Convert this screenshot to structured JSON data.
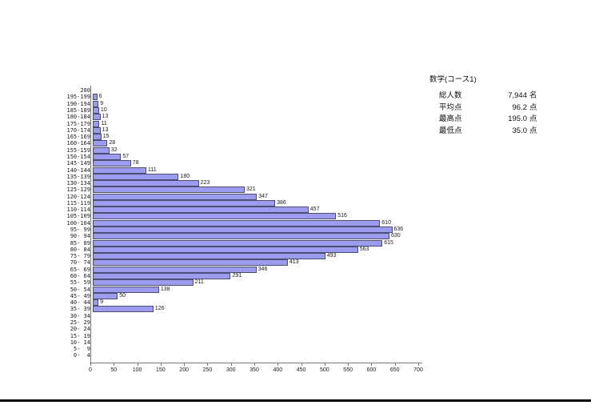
{
  "chart_data": {
    "type": "bar",
    "orientation": "horizontal",
    "title": "",
    "xlabel": "",
    "ylabel": "",
    "xlim": [
      0,
      700
    ],
    "x_ticks": [
      0,
      50,
      100,
      150,
      200,
      250,
      300,
      350,
      400,
      450,
      500,
      550,
      600,
      650,
      700
    ],
    "grid": "off",
    "bar_color": "#9c9cef",
    "bar_border_color": "#4d4d73",
    "categories": [
      "200",
      "195-199",
      "190-194",
      "185-189",
      "180-184",
      "175-179",
      "170-174",
      "165-169",
      "160-164",
      "155-159",
      "150-154",
      "145-149",
      "140-144",
      "135-139",
      "130-134",
      "125-129",
      "120-124",
      "115-119",
      "110-114",
      "105-109",
      "100-104",
      "95- 99",
      "90- 94",
      "85- 89",
      "80- 84",
      "75- 79",
      "70- 74",
      "65- 69",
      "60- 64",
      "55- 59",
      "50- 54",
      "45- 49",
      "40- 44",
      "35- 39",
      "30- 34",
      "25- 29",
      "20- 24",
      "15- 19",
      "10- 14",
      "5-  9",
      "0-  4"
    ],
    "values": [
      0,
      6,
      9,
      10,
      13,
      11,
      13,
      15,
      28,
      32,
      57,
      78,
      111,
      180,
      223,
      321,
      347,
      386,
      457,
      516,
      610,
      636,
      630,
      615,
      563,
      493,
      413,
      346,
      291,
      211,
      138,
      50,
      9,
      126,
      0,
      0,
      0,
      0,
      0,
      0,
      0
    ]
  },
  "stats_panel": {
    "title": "数学(コース1)",
    "rows": [
      {
        "label": "総人数",
        "value": "7,944",
        "unit": "名"
      },
      {
        "label": "平均点",
        "value": "96.2",
        "unit": "点"
      },
      {
        "label": "最高点",
        "value": "195.0",
        "unit": "点"
      },
      {
        "label": "最低点",
        "value": "35.0",
        "unit": "点"
      }
    ]
  }
}
